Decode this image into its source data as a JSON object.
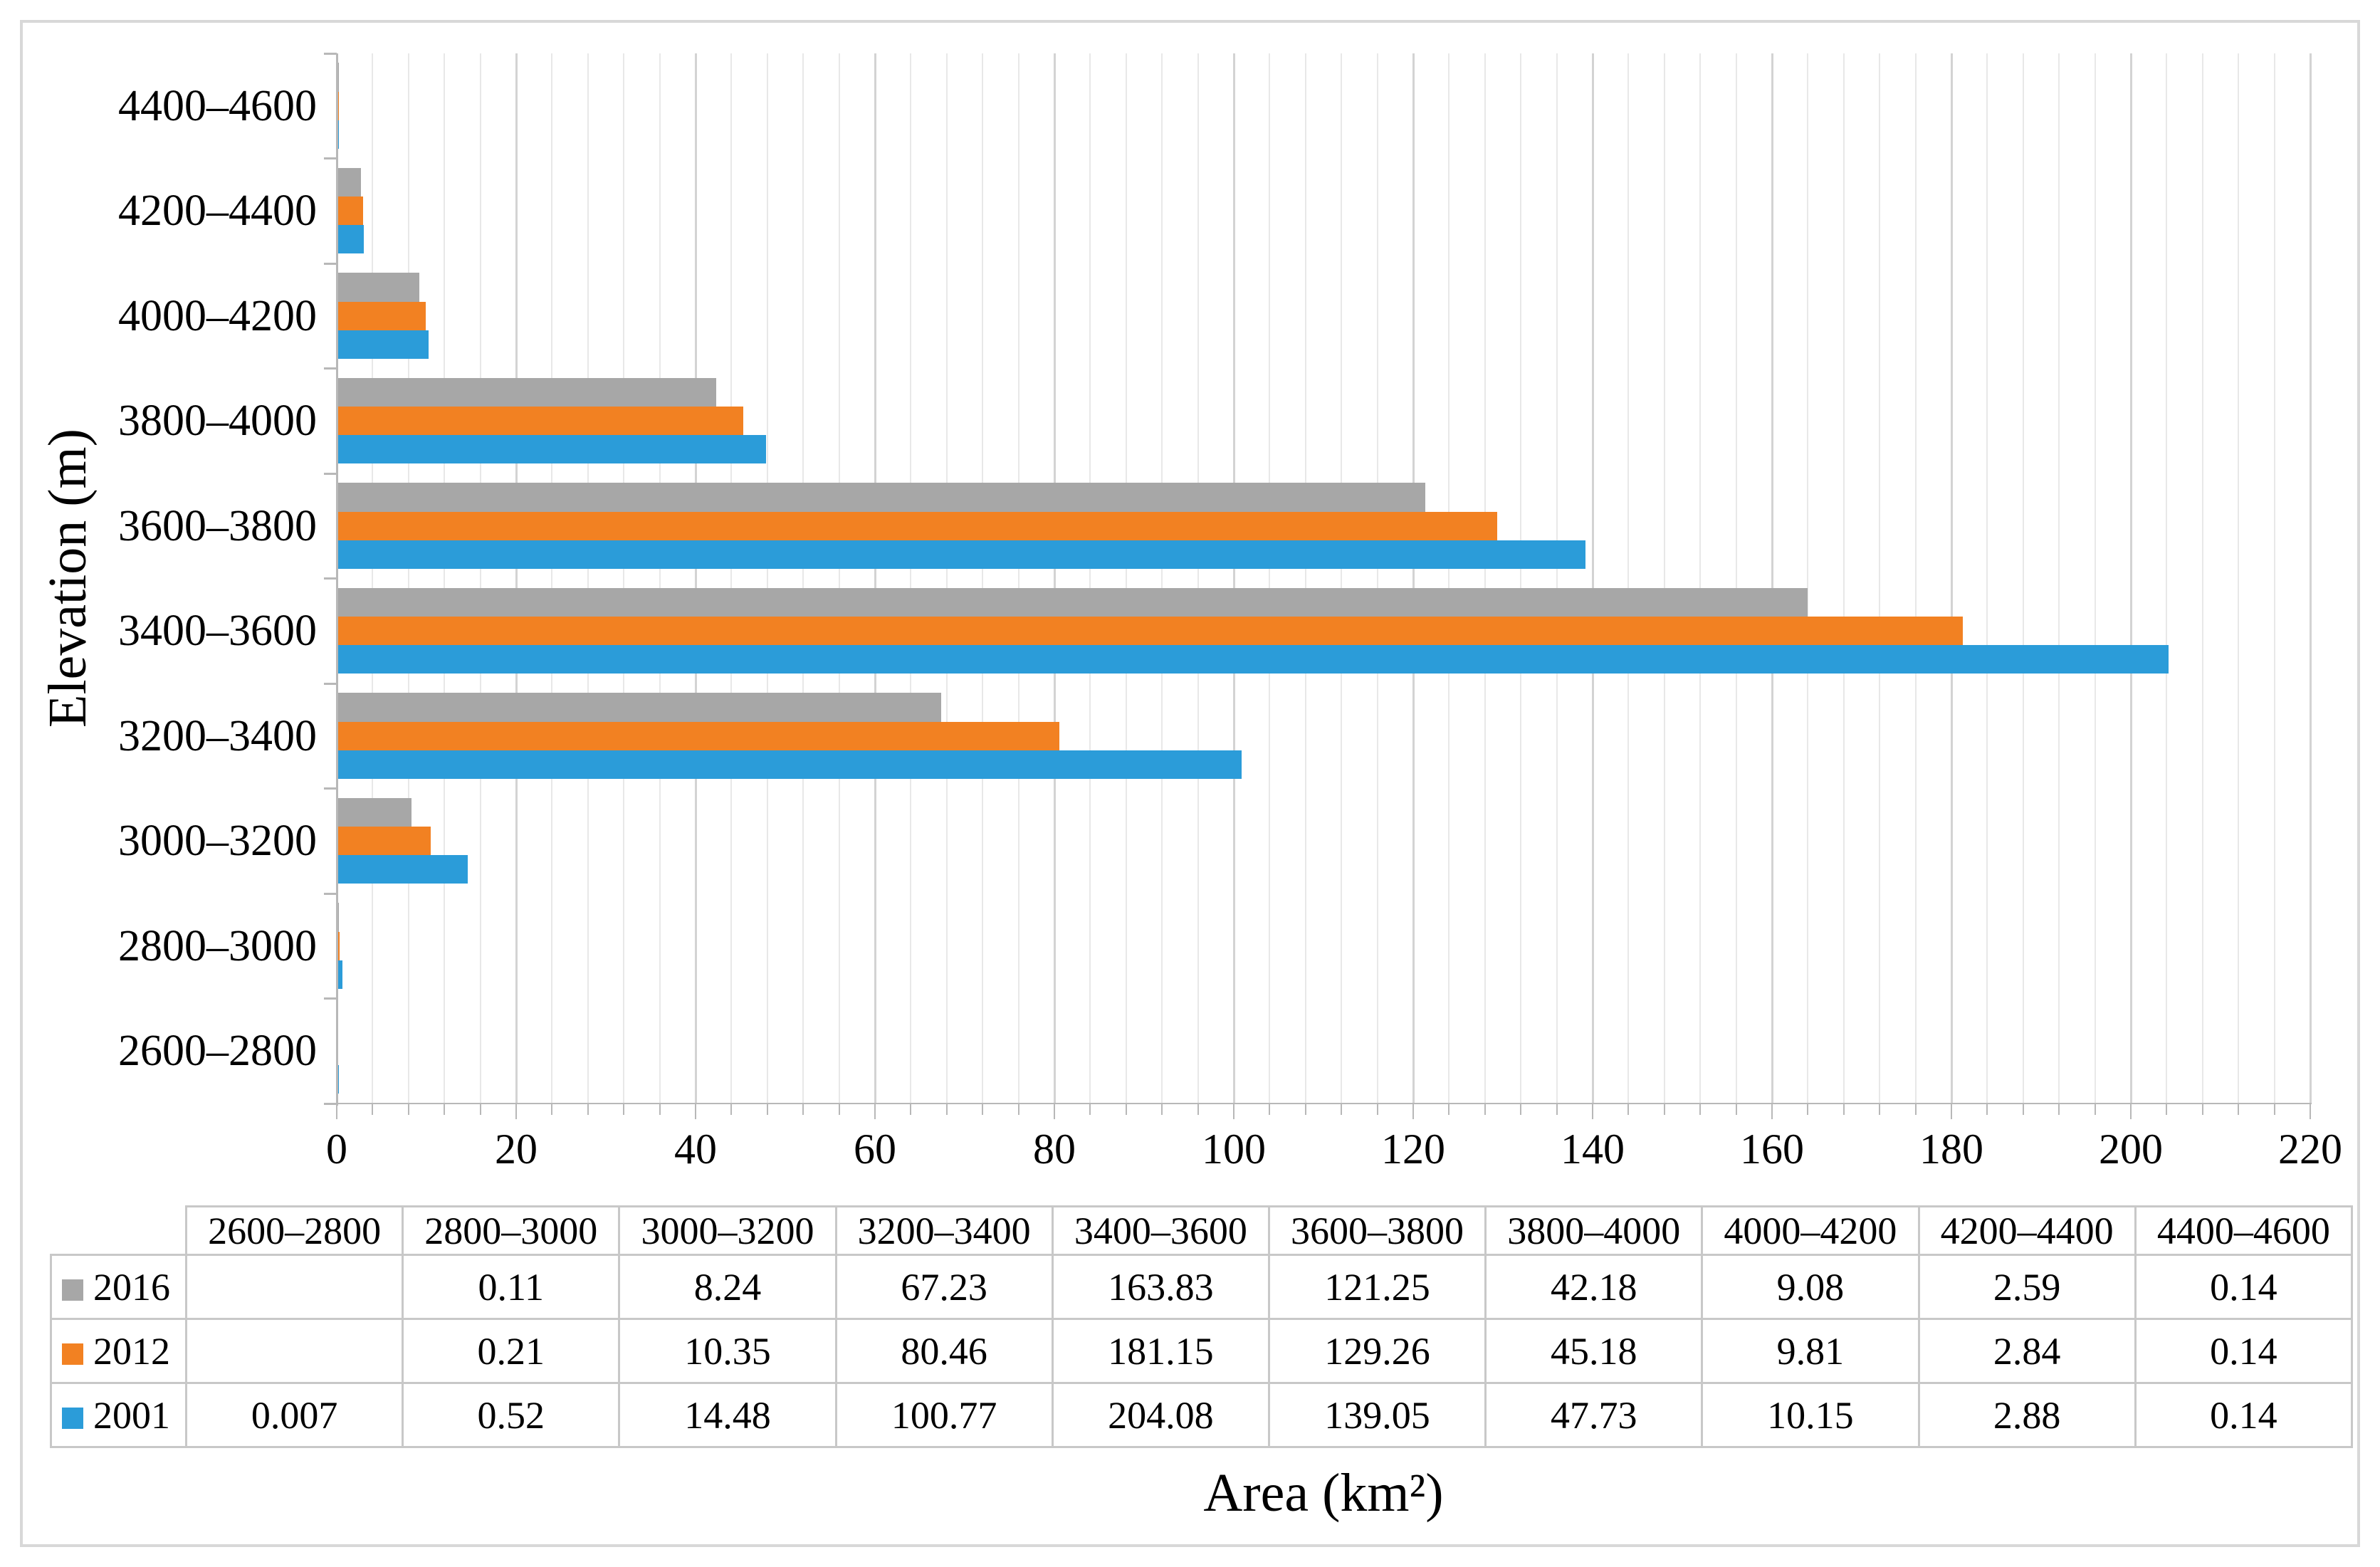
{
  "chart_data": {
    "type": "bar",
    "orientation": "horizontal",
    "title": "",
    "xlabel": "Area (km²)",
    "ylabel": "Elevation (m)",
    "xlim": [
      0,
      220
    ],
    "x_major_unit": 20,
    "x_minor_unit": 4,
    "x_tick_labels": [
      "0",
      "20",
      "40",
      "60",
      "80",
      "100",
      "120",
      "140",
      "160",
      "180",
      "200",
      "220"
    ],
    "grid": true,
    "legend_position": "table-left-column",
    "categories": [
      "2600–2800",
      "2800–3000",
      "3000–3200",
      "3200–3400",
      "3400–3600",
      "3600–3800",
      "3800–4000",
      "4000–4200",
      "4200–4400",
      "4400–4600"
    ],
    "category_axis_top_to_bottom": [
      "4400–4600",
      "4200–4400",
      "4000–4200",
      "3800–4000",
      "3600–3800",
      "3400–3600",
      "3200–3400",
      "3000–3200",
      "2800–3000",
      "2600–2800"
    ],
    "series": [
      {
        "name": "2016",
        "color": "#a7a7a7",
        "values": [
          null,
          0.11,
          8.24,
          67.23,
          163.83,
          121.25,
          42.18,
          9.08,
          2.59,
          0.14
        ]
      },
      {
        "name": "2012",
        "color": "#f28122",
        "values": [
          null,
          0.21,
          10.35,
          80.46,
          181.15,
          129.26,
          45.18,
          9.81,
          2.84,
          0.14
        ]
      },
      {
        "name": "2001",
        "color": "#2b9cd9",
        "values": [
          0.007,
          0.52,
          14.48,
          100.77,
          204.08,
          139.05,
          47.73,
          10.15,
          2.88,
          0.14
        ]
      }
    ]
  },
  "table": {
    "corner_label": "",
    "column_headers": [
      "2600–2800",
      "2800–3000",
      "3000–3200",
      "3200–3400",
      "3400–3600",
      "3600–3800",
      "3800–4000",
      "4000–4200",
      "4200–4400",
      "4400–4600"
    ],
    "rows": [
      {
        "year": "2016",
        "swatch_color": "#a7a7a7",
        "values": [
          "",
          "0.11",
          "8.24",
          "67.23",
          "163.83",
          "121.25",
          "42.18",
          "9.08",
          "2.59",
          "0.14"
        ]
      },
      {
        "year": "2012",
        "swatch_color": "#f28122",
        "values": [
          "",
          "0.21",
          "10.35",
          "80.46",
          "181.15",
          "129.26",
          "45.18",
          "9.81",
          "2.84",
          "0.14"
        ]
      },
      {
        "year": "2001",
        "swatch_color": "#2b9cd9",
        "values": [
          "0.007",
          "0.52",
          "14.48",
          "100.77",
          "204.08",
          "139.05",
          "47.73",
          "10.15",
          "2.88",
          "0.14"
        ]
      }
    ]
  },
  "colors": {
    "series_2016": "#a7a7a7",
    "series_2012": "#f28122",
    "series_2001": "#2b9cd9",
    "grid_minor": "#e8e8e8",
    "grid_major": "#d3d3d3",
    "axis_line": "#b8b8b8",
    "table_border": "#c8c8c8",
    "figure_border": "#d8d8d8",
    "background": "#ffffff"
  }
}
